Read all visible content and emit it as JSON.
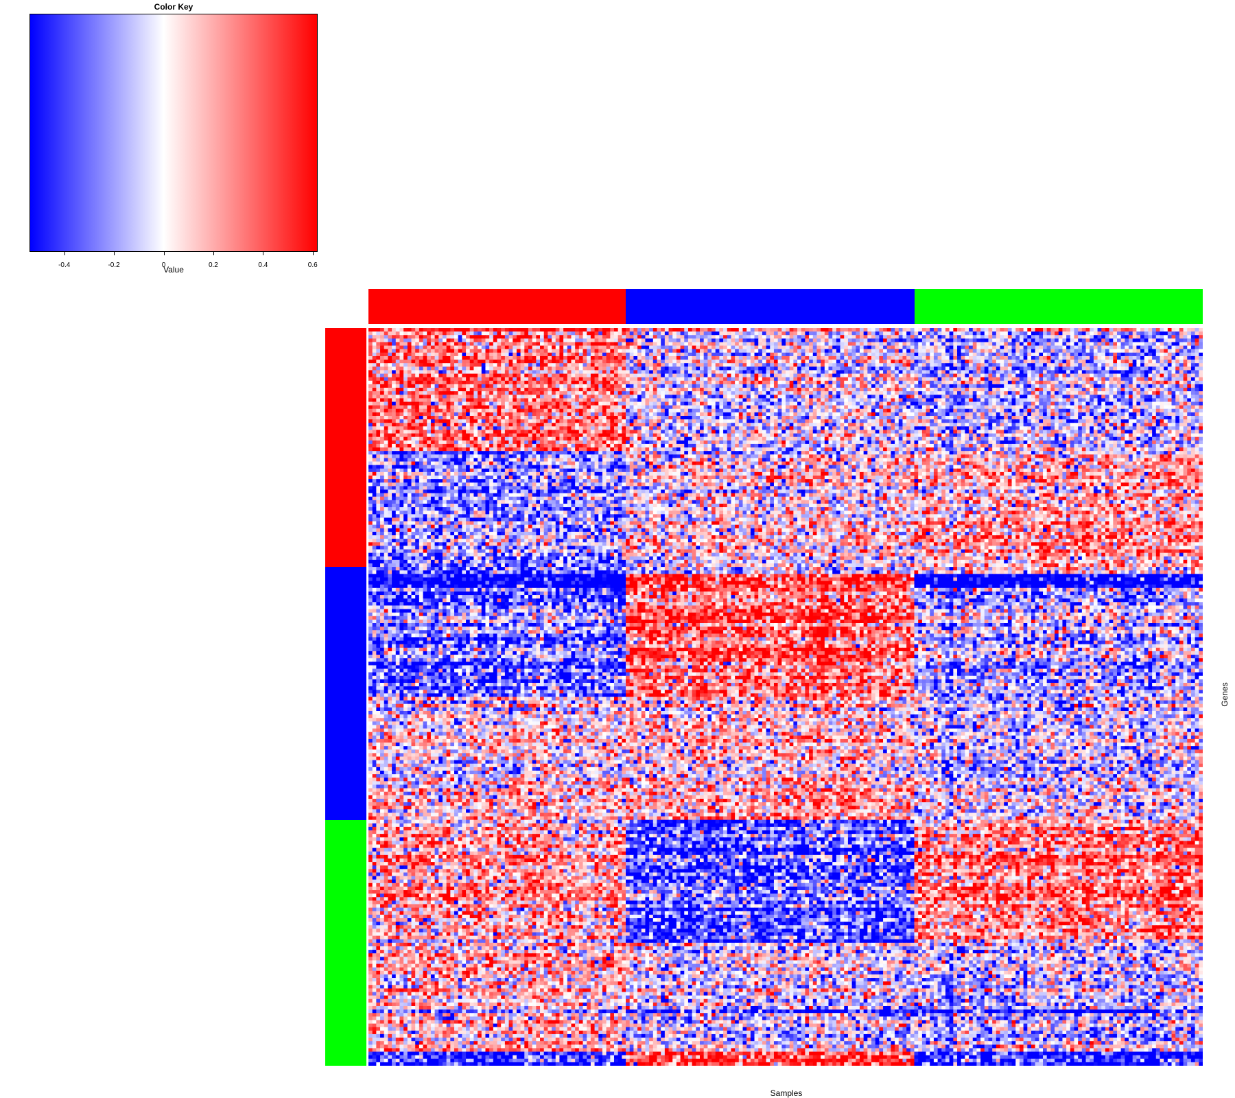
{
  "chart_data": {
    "type": "heatmap",
    "title": "",
    "xlabel": "Samples",
    "ylabel": "Genes",
    "color_key": {
      "title": "Color Key",
      "xlabel": "Value",
      "range": [
        -0.54,
        0.62
      ],
      "ticks": [
        "-0.4",
        "-0.2",
        "0",
        "0.2",
        "0.4",
        "0.6"
      ],
      "tick_values": [
        -0.4,
        -0.2,
        0,
        0.2,
        0.4,
        0.6
      ],
      "colors": [
        "#0000ff",
        "#ffffff",
        "#ff0000"
      ]
    },
    "n_samples": 214,
    "n_genes": 210,
    "column_groups": [
      {
        "color": "#ff0000",
        "samples": 66
      },
      {
        "color": "#0000ff",
        "samples": 74
      },
      {
        "color": "#00ff00",
        "samples": 74
      }
    ],
    "row_groups": [
      {
        "color": "#ff0000",
        "genes": 68
      },
      {
        "color": "#0000ff",
        "genes": 72
      },
      {
        "color": "#00ff00",
        "genes": 70
      }
    ],
    "block_means": [
      [
        0.28,
        -0.05,
        -0.12
      ],
      [
        -0.22,
        0.05,
        0.18
      ],
      [
        -0.3,
        0.38,
        -0.12
      ],
      [
        0.05,
        0.15,
        -0.05
      ],
      [
        0.2,
        -0.35,
        0.3
      ],
      [
        0.12,
        -0.05,
        -0.12
      ]
    ]
  }
}
